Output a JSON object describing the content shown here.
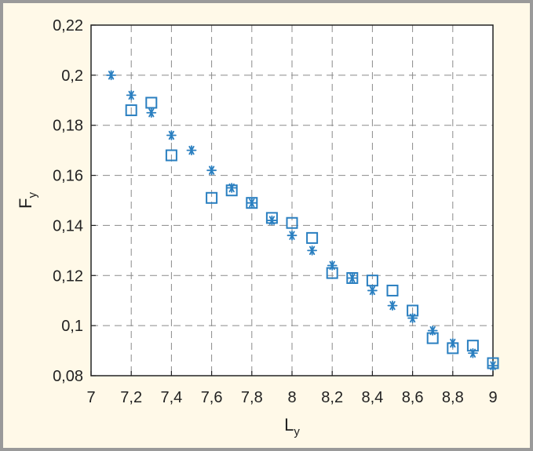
{
  "chart_data": {
    "type": "scatter",
    "xlabel": "L",
    "xlabel_sub": "y",
    "ylabel": "F",
    "ylabel_sub": "y",
    "xlim": [
      7,
      9
    ],
    "ylim": [
      0.08,
      0.22
    ],
    "grid": true,
    "x_ticks": [
      "7",
      "7,2",
      "7,4",
      "7,6",
      "7,8",
      "8",
      "8,2",
      "8,4",
      "8,6",
      "8,8",
      "9"
    ],
    "y_ticks": [
      "0,08",
      "0,1",
      "0,12",
      "0,14",
      "0,16",
      "0,18",
      "0,2",
      "0,22"
    ],
    "series": [
      {
        "marker": "square",
        "color": "#2a7fc0",
        "points": [
          [
            7.2,
            0.186
          ],
          [
            7.3,
            0.189
          ],
          [
            7.4,
            0.168
          ],
          [
            7.6,
            0.151
          ],
          [
            7.7,
            0.154
          ],
          [
            7.8,
            0.149
          ],
          [
            7.9,
            0.143
          ],
          [
            8.0,
            0.141
          ],
          [
            8.1,
            0.135
          ],
          [
            8.2,
            0.121
          ],
          [
            8.3,
            0.119
          ],
          [
            8.4,
            0.118
          ],
          [
            8.5,
            0.114
          ],
          [
            8.6,
            0.106
          ],
          [
            8.7,
            0.095
          ],
          [
            8.8,
            0.091
          ],
          [
            8.9,
            0.092
          ],
          [
            9.0,
            0.085
          ]
        ]
      },
      {
        "marker": "star",
        "color": "#2a7fc0",
        "points": [
          [
            7.1,
            0.2
          ],
          [
            7.2,
            0.192
          ],
          [
            7.3,
            0.185
          ],
          [
            7.4,
            0.176
          ],
          [
            7.5,
            0.17
          ],
          [
            7.6,
            0.162
          ],
          [
            7.7,
            0.155
          ],
          [
            7.8,
            0.149
          ],
          [
            7.9,
            0.142
          ],
          [
            8.0,
            0.136
          ],
          [
            8.1,
            0.13
          ],
          [
            8.2,
            0.124
          ],
          [
            8.3,
            0.119
          ],
          [
            8.4,
            0.114
          ],
          [
            8.5,
            0.108
          ],
          [
            8.6,
            0.103
          ],
          [
            8.7,
            0.098
          ],
          [
            8.8,
            0.093
          ],
          [
            8.9,
            0.089
          ],
          [
            9.0,
            0.084
          ]
        ]
      }
    ]
  }
}
